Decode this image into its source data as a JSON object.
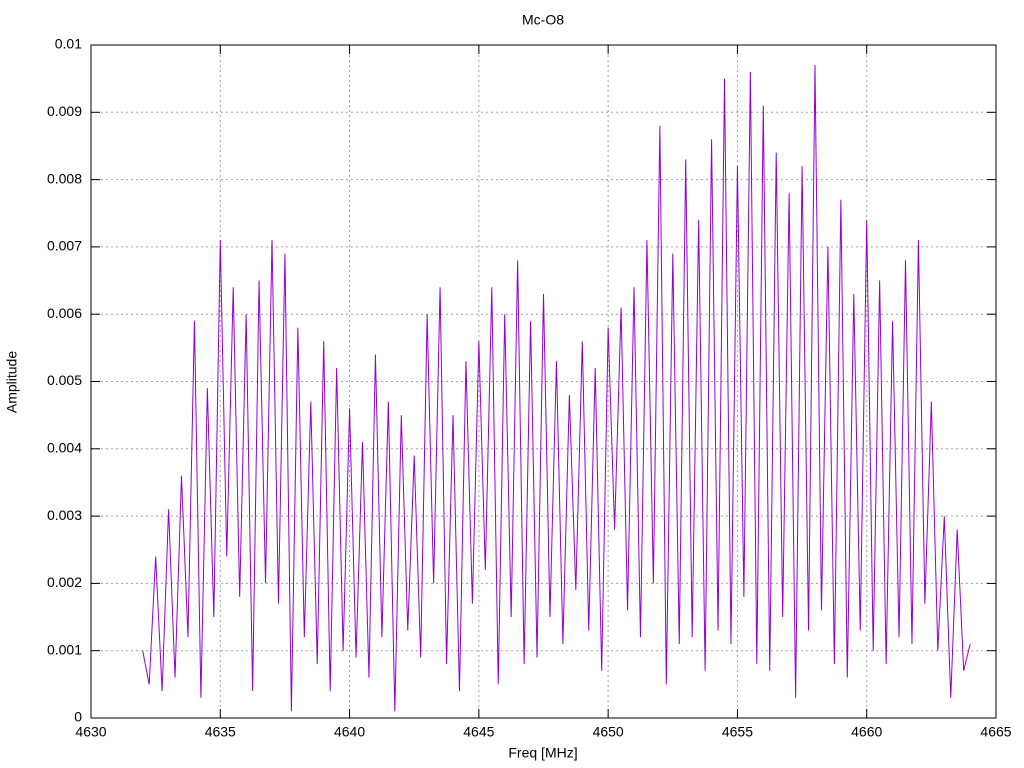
{
  "chart_data": {
    "type": "line",
    "title": "Mc-O8",
    "xlabel": "Freq [MHz]",
    "ylabel": "Amplitude",
    "xlim": [
      4630,
      4665
    ],
    "xticks": [
      4630,
      4635,
      4640,
      4645,
      4650,
      4655,
      4660,
      4665
    ],
    "ylim": [
      0,
      0.01
    ],
    "yticks": [
      0,
      0.001,
      0.002,
      0.003,
      0.004,
      0.005,
      0.006,
      0.007,
      0.008,
      0.009,
      0.01
    ],
    "grid": true,
    "x": [
      4632,
      4632.25,
      4632.5,
      4632.75,
      4633,
      4633.25,
      4633.5,
      4633.75,
      4634,
      4634.25,
      4634.5,
      4634.75,
      4635,
      4635.25,
      4635.5,
      4635.75,
      4636,
      4636.25,
      4636.5,
      4636.75,
      4637,
      4637.25,
      4637.5,
      4637.75,
      4638,
      4638.25,
      4638.5,
      4638.75,
      4639,
      4639.25,
      4639.5,
      4639.75,
      4640,
      4640.25,
      4640.5,
      4640.75,
      4641,
      4641.25,
      4641.5,
      4641.75,
      4642,
      4642.25,
      4642.5,
      4642.75,
      4643,
      4643.25,
      4643.5,
      4643.75,
      4644,
      4644.25,
      4644.5,
      4644.75,
      4645,
      4645.25,
      4645.5,
      4645.75,
      4646,
      4646.25,
      4646.5,
      4646.75,
      4647,
      4647.25,
      4647.5,
      4647.75,
      4648,
      4648.25,
      4648.5,
      4648.75,
      4649,
      4649.25,
      4649.5,
      4649.75,
      4650,
      4650.25,
      4650.5,
      4650.75,
      4651,
      4651.25,
      4651.5,
      4651.75,
      4652,
      4652.25,
      4652.5,
      4652.75,
      4653,
      4653.25,
      4653.5,
      4653.75,
      4654,
      4654.25,
      4654.5,
      4654.75,
      4655,
      4655.25,
      4655.5,
      4655.75,
      4656,
      4656.25,
      4656.5,
      4656.75,
      4657,
      4657.25,
      4657.5,
      4657.75,
      4658,
      4658.25,
      4658.5,
      4658.75,
      4659,
      4659.25,
      4659.5,
      4659.75,
      4660,
      4660.25,
      4660.5,
      4660.75,
      4661,
      4661.25,
      4661.5,
      4661.75,
      4662,
      4662.25,
      4662.5,
      4662.75,
      4663,
      4663.25,
      4663.5,
      4663.75,
      4664
    ],
    "series": [
      {
        "color": "#9400d3",
        "values": [
          0.001,
          0.0005,
          0.0024,
          0.0004,
          0.0031,
          0.0006,
          0.0036,
          0.0012,
          0.0059,
          0.0003,
          0.0049,
          0.0015,
          0.0071,
          0.0024,
          0.0064,
          0.0018,
          0.006,
          0.0004,
          0.0065,
          0.002,
          0.0071,
          0.0017,
          0.0069,
          0.0001,
          0.0058,
          0.0012,
          0.0047,
          0.0008,
          0.0056,
          0.0004,
          0.0052,
          0.001,
          0.0046,
          0.0009,
          0.0041,
          0.0006,
          0.0054,
          0.0012,
          0.0047,
          0.0001,
          0.0045,
          0.0013,
          0.0039,
          0.0009,
          0.006,
          0.002,
          0.0064,
          0.0008,
          0.0045,
          0.0004,
          0.0053,
          0.0017,
          0.0056,
          0.0022,
          0.0064,
          0.0005,
          0.006,
          0.0015,
          0.0068,
          0.0008,
          0.0059,
          0.0009,
          0.0063,
          0.0015,
          0.0053,
          0.0011,
          0.0048,
          0.0019,
          0.0056,
          0.0013,
          0.0052,
          0.0007,
          0.0058,
          0.0028,
          0.0061,
          0.0016,
          0.0064,
          0.0012,
          0.0071,
          0.002,
          0.0088,
          0.0005,
          0.0069,
          0.0011,
          0.0083,
          0.0012,
          0.0074,
          0.0007,
          0.0086,
          0.0013,
          0.0095,
          0.0011,
          0.0082,
          0.0018,
          0.0096,
          0.0008,
          0.0091,
          0.0007,
          0.0084,
          0.0015,
          0.0078,
          0.0003,
          0.0082,
          0.0013,
          0.0097,
          0.0016,
          0.007,
          0.0008,
          0.0077,
          0.0006,
          0.0063,
          0.0013,
          0.0074,
          0.001,
          0.0065,
          0.0008,
          0.0059,
          0.0012,
          0.0068,
          0.0011,
          0.0071,
          0.0017,
          0.0047,
          0.001,
          0.003,
          0.0003,
          0.0028,
          0.0007,
          0.0011
        ]
      }
    ]
  }
}
